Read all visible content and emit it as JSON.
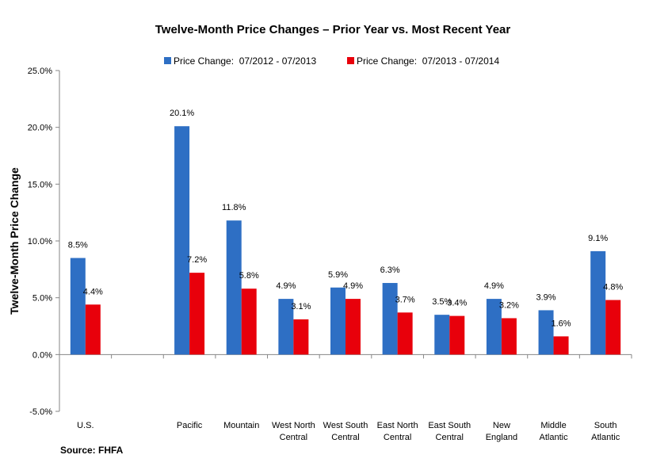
{
  "chart_data": {
    "type": "bar",
    "title": "Twelve-Month Price Changes – Prior Year vs. Most Recent Year",
    "ylabel": "Twelve-Month Price Change",
    "xlabel": "",
    "source": "Source: FHFA",
    "ylim": [
      -5,
      25
    ],
    "yticks": [
      -5,
      0,
      5,
      10,
      15,
      20,
      25
    ],
    "ytick_labels": [
      "-5.0%",
      "0.0%",
      "5.0%",
      "10.0%",
      "15.0%",
      "20.0%",
      "25.0%"
    ],
    "grid": false,
    "legend_position": "top-center",
    "categories": [
      [
        "U.S."
      ],
      [
        ""
      ],
      [
        "Pacific"
      ],
      [
        "Mountain"
      ],
      [
        "West North",
        "Central"
      ],
      [
        "West South",
        "Central"
      ],
      [
        "East North",
        "Central"
      ],
      [
        "East South",
        "Central"
      ],
      [
        "New",
        "England"
      ],
      [
        "Middle",
        "Atlantic"
      ],
      [
        "South",
        "Atlantic"
      ]
    ],
    "series": [
      {
        "name": "Price Change:  07/2012 - 07/2013",
        "color": "#2E6FC4",
        "values": [
          8.5,
          null,
          20.1,
          11.8,
          4.9,
          5.9,
          6.3,
          3.5,
          4.9,
          3.9,
          9.1
        ],
        "labels": [
          "8.5%",
          "",
          "20.1%",
          "11.8%",
          "4.9%",
          "5.9%",
          "6.3%",
          "3.5%",
          "4.9%",
          "3.9%",
          "9.1%"
        ]
      },
      {
        "name": "Price Change:  07/2013 - 07/2014",
        "color": "#E8000B",
        "values": [
          4.4,
          null,
          7.2,
          5.8,
          3.1,
          4.9,
          3.7,
          3.4,
          3.2,
          1.6,
          4.8
        ],
        "labels": [
          "4.4%",
          "",
          "7.2%",
          "5.8%",
          "3.1%",
          "4.9%",
          "3.7%",
          "3.4%",
          "3.2%",
          "1.6%",
          "4.8%"
        ]
      }
    ]
  }
}
